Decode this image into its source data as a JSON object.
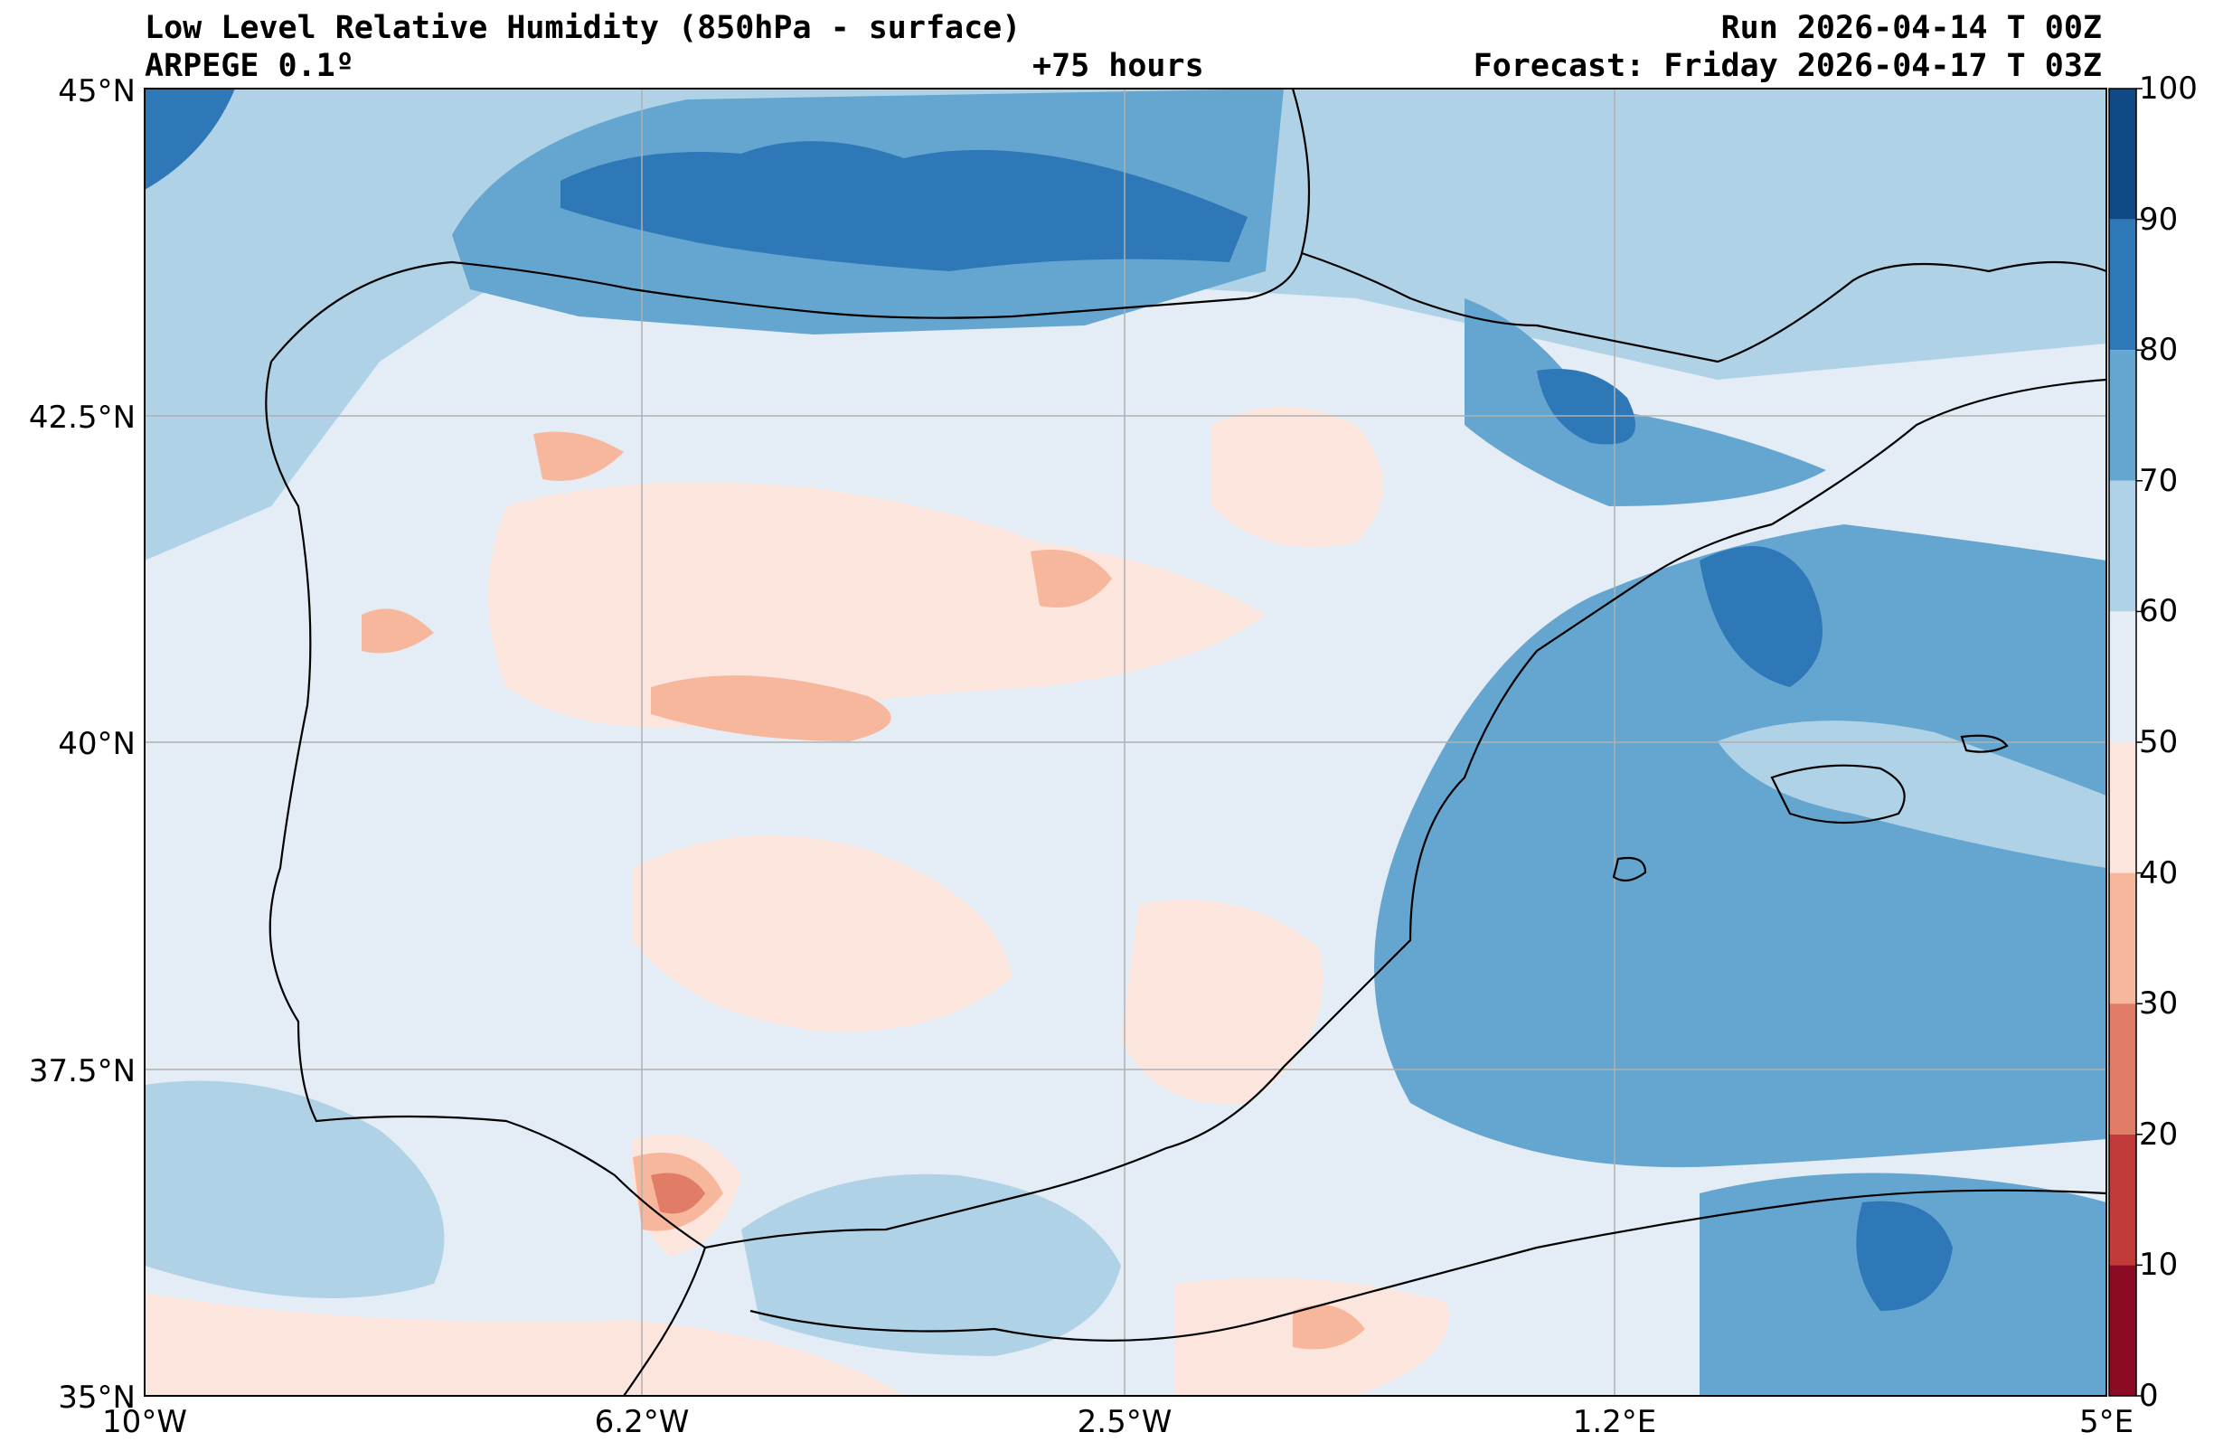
{
  "header": {
    "title": "Low Level Relative Humidity (850hPa - surface)",
    "model": "ARPEGE 0.1º",
    "lead_time": "+75 hours",
    "run": "Run 2026-04-14 T 00Z",
    "forecast": "Forecast: Friday 2026-04-17 T 03Z"
  },
  "axes": {
    "lat_labels": [
      "45°N",
      "42.5°N",
      "40°N",
      "37.5°N",
      "35°N"
    ],
    "lon_labels": [
      "10°W",
      "6.2°W",
      "2.5°W",
      "1.2°E",
      "5°E"
    ],
    "lat_range": [
      35,
      45
    ],
    "lon_range": [
      -10,
      5
    ]
  },
  "colorbar": {
    "levels": [
      "100",
      "90",
      "80",
      "70",
      "60",
      "50",
      "40",
      "30",
      "20",
      "10",
      "0"
    ],
    "colors": [
      "#0f4a86",
      "#2f78b8",
      "#65a6d0",
      "#afd2e6",
      "#e4edf5",
      "#fbe5dc",
      "#f7b79d",
      "#e17c66",
      "#c23a39",
      "#8c0b24"
    ]
  }
}
